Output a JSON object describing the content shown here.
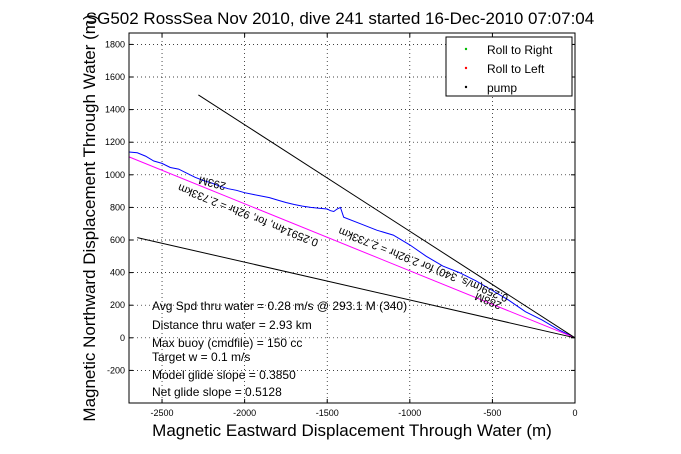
{
  "chart_data": {
    "type": "line",
    "title": "SG502 RossSea Nov 2010, dive 241 started 16-Dec-2010 07:07:04",
    "xlabel": "Magnetic Eastward Displacement Through Water (m)",
    "ylabel": "Magnetic Northward Displacement Through Water (m)",
    "xlim": [
      -2700,
      0
    ],
    "ylim": [
      -400,
      1870
    ],
    "x_ticks": [
      -2500,
      -2000,
      -1500,
      -1000,
      -500,
      0
    ],
    "y_ticks": [
      -200,
      0,
      200,
      400,
      600,
      800,
      1000,
      1200,
      1400,
      1600,
      1800
    ],
    "grid": true,
    "legend_position": "top-right",
    "legend": [
      {
        "label": "Roll to Right",
        "color": "#00bb00"
      },
      {
        "label": "Roll to Left",
        "color": "#ff0000"
      },
      {
        "label": "pump",
        "color": "#000000"
      }
    ],
    "series": [
      {
        "name": "",
        "color": "#0000ff",
        "x": [
          -2700,
          -2650,
          -2600,
          -2550,
          -2500,
          -2450,
          -2400,
          -2350,
          -2300,
          -2250,
          -2200,
          -2150,
          -2100,
          -2050,
          -2000,
          -1950,
          -1900,
          -1850,
          -1800,
          -1750,
          -1700,
          -1650,
          -1600,
          -1550,
          -1500,
          -1480,
          -1460,
          -1440,
          -1420,
          -1400,
          -1300,
          -1200,
          -1100,
          -1000,
          -900,
          -800,
          -700,
          -600,
          -500,
          -400,
          -300,
          -200,
          -100,
          0
        ],
        "y": [
          1140,
          1135,
          1115,
          1085,
          1070,
          1045,
          1035,
          1010,
          985,
          965,
          950,
          930,
          915,
          905,
          890,
          880,
          870,
          860,
          845,
          830,
          818,
          808,
          800,
          795,
          790,
          780,
          775,
          790,
          800,
          740,
          700,
          660,
          630,
          570,
          500,
          440,
          400,
          350,
          290,
          230,
          160,
          110,
          50,
          0
        ]
      },
      {
        "name": "",
        "color": "#ff00ff",
        "x": [
          -2700,
          0
        ],
        "y": [
          1110,
          0
        ]
      },
      {
        "name": "",
        "color": "#000000",
        "x": [
          -2280,
          0
        ],
        "y": [
          1490,
          0
        ]
      },
      {
        "name": "",
        "color": "#000000",
        "x": [
          -2650,
          0
        ],
        "y": [
          615,
          0
        ]
      }
    ],
    "annotations": [
      {
        "text": "293M",
        "x": -2110,
        "y": 950,
        "angle_deg": 14
      },
      {
        "text": "0.25914m, for, 92hr = 2.733km",
        "x": -1550,
        "y": 600,
        "angle_deg": 22
      },
      {
        "text": "0.259(m/s, 340) for 2.92hr = 2.733km",
        "x": -400,
        "y": 260,
        "angle_deg": 22
      },
      {
        "text": "288M",
        "x": -440,
        "y": 215,
        "angle_deg": 22
      }
    ],
    "text_lines": [
      "Avg Spd thru water =  0.28 m/s @ 293.1    M (340)",
      "Distance thru water =  2.93 km",
      "Max buoy (cmdfile) = 150 cc",
      "Target w = 0.1 m/s",
      "Model glide slope = 0.3850",
      "Net glide slope = 0.5128"
    ]
  }
}
